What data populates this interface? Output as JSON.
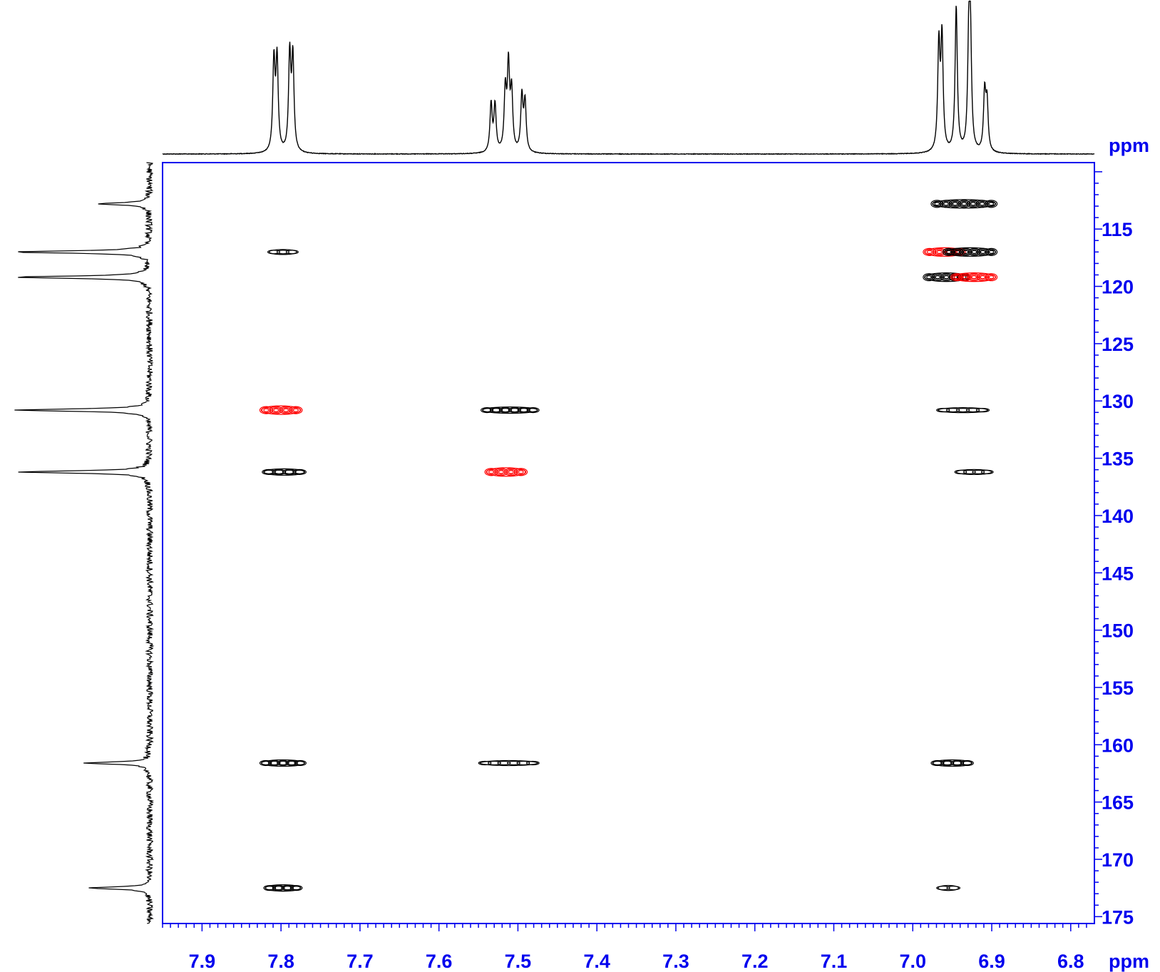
{
  "chart_data": {
    "type": "2d-nmr-contour",
    "x_axis": {
      "unit": "ppm",
      "range": [
        7.95,
        6.77
      ],
      "reversed": true,
      "ticks": [
        {
          "value": 7.9,
          "label": "7.9"
        },
        {
          "value": 7.8,
          "label": "7.8"
        },
        {
          "value": 7.7,
          "label": "7.7"
        },
        {
          "value": 7.6,
          "label": "7.6"
        },
        {
          "value": 7.5,
          "label": "7.5"
        },
        {
          "value": 7.4,
          "label": "7.4"
        },
        {
          "value": 7.3,
          "label": "7.3"
        },
        {
          "value": 7.2,
          "label": "7.2"
        },
        {
          "value": 7.1,
          "label": "7.1"
        },
        {
          "value": 7.0,
          "label": "7.0"
        },
        {
          "value": 6.9,
          "label": "6.9"
        },
        {
          "value": 6.8,
          "label": "6.8"
        }
      ]
    },
    "y_axis": {
      "unit": "ppm",
      "range": [
        109.2,
        175.6
      ],
      "reversed": false,
      "ticks": [
        {
          "value": 115,
          "label": "115"
        },
        {
          "value": 120,
          "label": "120"
        },
        {
          "value": 125,
          "label": "125"
        },
        {
          "value": 130,
          "label": "130"
        },
        {
          "value": 135,
          "label": "135"
        },
        {
          "value": 140,
          "label": "140"
        },
        {
          "value": 145,
          "label": "145"
        },
        {
          "value": 150,
          "label": "150"
        },
        {
          "value": 155,
          "label": "155"
        },
        {
          "value": 160,
          "label": "160"
        },
        {
          "value": 165,
          "label": "165"
        },
        {
          "value": 170,
          "label": "170"
        },
        {
          "value": 175,
          "label": "175"
        }
      ]
    },
    "top_projection_1H": [
      {
        "shift": 7.809,
        "height": 0.62
      },
      {
        "shift": 7.805,
        "height": 0.63
      },
      {
        "shift": 7.789,
        "height": 0.66
      },
      {
        "shift": 7.785,
        "height": 0.64
      },
      {
        "shift": 7.534,
        "height": 0.33
      },
      {
        "shift": 7.529,
        "height": 0.32
      },
      {
        "shift": 7.516,
        "height": 0.41
      },
      {
        "shift": 7.512,
        "height": 0.57
      },
      {
        "shift": 7.508,
        "height": 0.4
      },
      {
        "shift": 7.495,
        "height": 0.38
      },
      {
        "shift": 7.491,
        "height": 0.34
      },
      {
        "shift": 6.967,
        "height": 0.72
      },
      {
        "shift": 6.963,
        "height": 0.77
      },
      {
        "shift": 6.945,
        "height": 1.0
      },
      {
        "shift": 6.929,
        "height": 0.74
      },
      {
        "shift": 6.927,
        "height": 0.72
      },
      {
        "shift": 6.909,
        "height": 0.4
      },
      {
        "shift": 6.906,
        "height": 0.33
      }
    ],
    "left_projection_13C": [
      {
        "shift": 112.8,
        "height": 0.36
      },
      {
        "shift": 117.0,
        "height": 0.98
      },
      {
        "shift": 119.2,
        "height": 0.97
      },
      {
        "shift": 130.8,
        "height": 0.96
      },
      {
        "shift": 136.2,
        "height": 0.93
      },
      {
        "shift": 161.6,
        "height": 0.47
      },
      {
        "shift": 172.5,
        "height": 0.42
      }
    ],
    "cross_peaks": [
      {
        "h": 6.94,
        "c": 112.8,
        "h_span": [
          6.975,
          6.895
        ],
        "color": "#000000",
        "size": 3
      },
      {
        "h": 7.797,
        "c": 117.0,
        "h_span": [
          7.815,
          7.78
        ],
        "color": "#000000",
        "size": 1
      },
      {
        "h": 6.955,
        "c": 117.0,
        "h_span": [
          6.985,
          6.935
        ],
        "color": "#ff0000",
        "size": 3
      },
      {
        "h": 6.93,
        "c": 117.0,
        "h_span": [
          6.96,
          6.895
        ],
        "color": "#000000",
        "size": 3
      },
      {
        "h": 6.955,
        "c": 119.2,
        "h_span": [
          6.985,
          6.93
        ],
        "color": "#000000",
        "size": 3
      },
      {
        "h": 6.925,
        "c": 119.2,
        "h_span": [
          6.95,
          6.895
        ],
        "color": "#ff0000",
        "size": 3
      },
      {
        "h": 7.8,
        "c": 130.8,
        "h_span": [
          7.825,
          7.775
        ],
        "color": "#ff0000",
        "size": 3
      },
      {
        "h": 7.511,
        "c": 130.8,
        "h_span": [
          7.545,
          7.475
        ],
        "color": "#000000",
        "size": 2
      },
      {
        "h": 6.935,
        "c": 130.8,
        "h_span": [
          6.968,
          6.905
        ],
        "color": "#000000",
        "size": 1
      },
      {
        "h": 7.797,
        "c": 136.2,
        "h_span": [
          7.822,
          7.77
        ],
        "color": "#000000",
        "size": 2
      },
      {
        "h": 7.514,
        "c": 136.2,
        "h_span": [
          7.54,
          7.49
        ],
        "color": "#ff0000",
        "size": 3
      },
      {
        "h": 6.928,
        "c": 136.2,
        "h_span": [
          6.945,
          6.9
        ],
        "color": "#000000",
        "size": 1
      },
      {
        "h": 7.797,
        "c": 161.6,
        "h_span": [
          7.825,
          7.77
        ],
        "color": "#000000",
        "size": 2
      },
      {
        "h": 7.509,
        "c": 161.6,
        "h_span": [
          7.548,
          7.475
        ],
        "color": "#000000",
        "size": 1
      },
      {
        "h": 6.95,
        "c": 161.6,
        "h_span": [
          6.975,
          6.925
        ],
        "color": "#000000",
        "size": 2
      },
      {
        "h": 7.797,
        "c": 172.5,
        "h_span": [
          7.82,
          7.775
        ],
        "color": "#000000",
        "size": 2
      },
      {
        "h": 6.955,
        "c": 172.5,
        "h_span": [
          6.968,
          6.942
        ],
        "color": "#000000",
        "size": 1
      }
    ],
    "colors": {
      "axis": "#0000ee",
      "trace": "#000000",
      "positive_contour": "#000000",
      "negative_contour": "#ff0000"
    },
    "grid": false
  }
}
